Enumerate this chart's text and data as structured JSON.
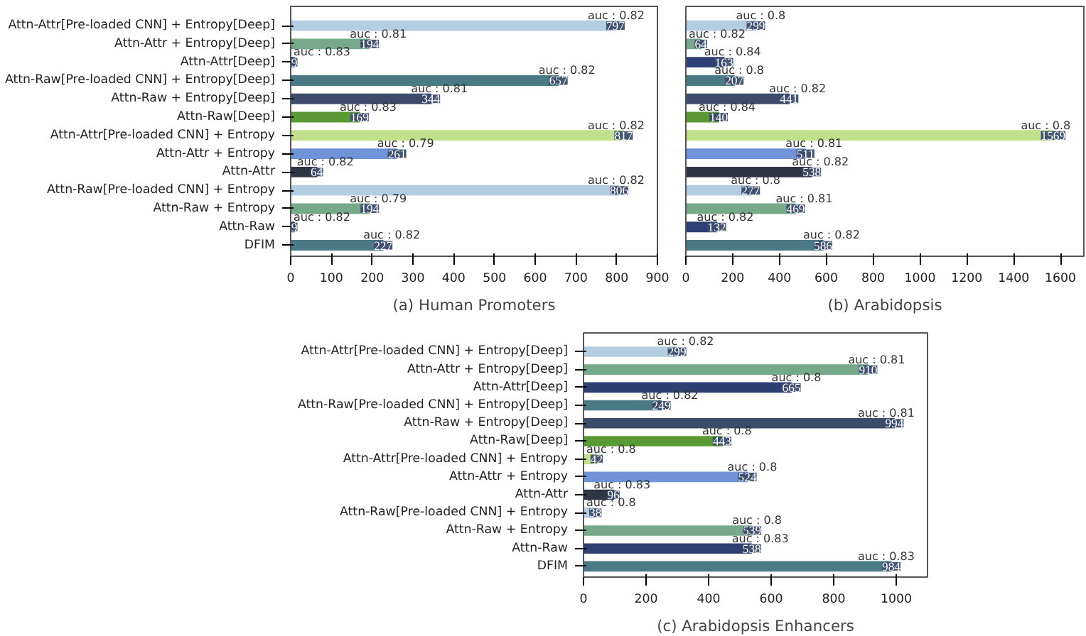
{
  "chart_data": [
    {
      "type": "bar",
      "orientation": "horizontal",
      "title": "(a) Human Promoters",
      "categories": [
        "Attn-Attr[Pre-loaded CNN] + Entropy[Deep]",
        "Attn-Attr + Entropy[Deep]",
        "Attn-Attr[Deep]",
        "Attn-Raw[Pre-loaded CNN] + Entropy[Deep]",
        "Attn-Raw + Entropy[Deep]",
        "Attn-Raw[Deep]",
        "Attn-Attr[Pre-loaded CNN] + Entropy",
        "Attn-Attr + Entropy",
        "Attn-Attr",
        "Attn-Raw[Pre-loaded CNN] + Entropy",
        "Attn-Raw + Entropy",
        "Attn-Raw",
        "DFIM"
      ],
      "values": [
        797,
        194,
        9,
        657,
        344,
        169,
        817,
        261,
        64,
        806,
        194,
        9,
        227
      ],
      "colors": [
        "#b3cde3",
        "#75a98a",
        "#2e3f73",
        "#4a7a85",
        "#3d4b6b",
        "#5a9a35",
        "#c2df8c",
        "#7093d8",
        "#2f3544",
        "#b3cde3",
        "#75a98a",
        "#2e3f73",
        "#4a7a85"
      ],
      "xlim": [
        0,
        900
      ],
      "xticks": [
        0,
        100,
        200,
        300,
        400,
        500,
        600,
        700,
        800,
        900
      ],
      "data_labels": true,
      "grid": false,
      "annotations": [
        {
          "text": "auc : 0.82",
          "x": 797,
          "y": "Attn-Attr[Pre-loaded CNN] + Entropy[Deep]"
        },
        {
          "text": "auc : 0.81",
          "x": 194,
          "y": "Attn-Attr + Entropy[Deep]"
        },
        {
          "text": "auc : 0.83",
          "x": 9,
          "y": "Attn-Attr[Deep]"
        },
        {
          "text": "auc : 0.82",
          "x": 657,
          "y": "Attn-Raw[Pre-loaded CNN] + Entropy[Deep]"
        },
        {
          "text": "auc : 0.81",
          "x": 344,
          "y": "Attn-Raw + Entropy[Deep]"
        },
        {
          "text": "auc : 0.83",
          "x": 169,
          "y": "Attn-Raw[Deep]"
        },
        {
          "text": "auc : 0.82",
          "x": 817,
          "y": "Attn-Attr[Pre-loaded CNN] + Entropy"
        },
        {
          "text": "auc : 0.79",
          "x": 261,
          "y": "Attn-Attr + Entropy"
        },
        {
          "text": "auc : 0.82",
          "x": 64,
          "y": "Attn-Attr"
        },
        {
          "text": "auc : 0.82",
          "x": 806,
          "y": "Attn-Raw[Pre-loaded CNN] + Entropy"
        },
        {
          "text": "auc : 0.79",
          "x": 194,
          "y": "Attn-Raw + Entropy"
        },
        {
          "text": "auc : 0.82",
          "x": 9,
          "y": "Attn-Raw"
        },
        {
          "text": "auc : 0.82",
          "x": 227,
          "y": "DFIM"
        }
      ]
    },
    {
      "type": "bar",
      "orientation": "horizontal",
      "title": "(b) Arabidopsis",
      "categories": [
        "Attn-Attr[Pre-loaded CNN] + Entropy[Deep]",
        "Attn-Attr + Entropy[Deep]",
        "Attn-Attr[Deep]",
        "Attn-Raw[Pre-loaded CNN] + Entropy[Deep]",
        "Attn-Raw + Entropy[Deep]",
        "Attn-Raw[Deep]",
        "Attn-Attr[Pre-loaded CNN] + Entropy",
        "Attn-Attr + Entropy",
        "Attn-Attr",
        "Attn-Raw[Pre-loaded CNN] + Entropy",
        "Attn-Raw + Entropy",
        "Attn-Raw",
        "DFIM"
      ],
      "values": [
        299,
        64,
        163,
        207,
        441,
        140,
        1569,
        511,
        538,
        277,
        469,
        132,
        586
      ],
      "colors": [
        "#b3cde3",
        "#75a98a",
        "#2e3f73",
        "#4a7a85",
        "#3d4b6b",
        "#5a9a35",
        "#c2df8c",
        "#7093d8",
        "#2f3544",
        "#b3cde3",
        "#75a98a",
        "#2e3f73",
        "#4a7a85"
      ],
      "xlim": [
        0,
        1700
      ],
      "xticks": [
        0,
        200,
        400,
        600,
        800,
        1000,
        1200,
        1400,
        1600
      ],
      "data_labels": true,
      "grid": false,
      "tick_labels": "x",
      "annotations": [
        {
          "text": "auc : 0.8",
          "x": 299,
          "y": "Attn-Attr[Pre-loaded CNN] + Entropy[Deep]"
        },
        {
          "text": "auc : 0.82",
          "x": 64,
          "y": "Attn-Attr + Entropy[Deep]"
        },
        {
          "text": "auc : 0.84",
          "x": 163,
          "y": "Attn-Attr[Deep]"
        },
        {
          "text": "auc : 0.8",
          "x": 207,
          "y": "Attn-Raw[Pre-loaded CNN] + Entropy[Deep]"
        },
        {
          "text": "auc : 0.82",
          "x": 441,
          "y": "Attn-Raw + Entropy[Deep]"
        },
        {
          "text": "auc : 0.84",
          "x": 140,
          "y": "Attn-Raw[Deep]"
        },
        {
          "text": "auc : 0.8",
          "x": 1569,
          "y": "Attn-Attr[Pre-loaded CNN] + Entropy"
        },
        {
          "text": "auc : 0.81",
          "x": 511,
          "y": "Attn-Attr + Entropy"
        },
        {
          "text": "auc : 0.82",
          "x": 538,
          "y": "Attn-Attr"
        },
        {
          "text": "auc : 0.8",
          "x": 277,
          "y": "Attn-Raw[Pre-loaded CNN] + Entropy"
        },
        {
          "text": "auc : 0.81",
          "x": 469,
          "y": "Attn-Raw + Entropy"
        },
        {
          "text": "auc : 0.82",
          "x": 132,
          "y": "Attn-Raw"
        },
        {
          "text": "auc : 0.82",
          "x": 586,
          "y": "DFIM"
        }
      ]
    },
    {
      "type": "bar",
      "orientation": "horizontal",
      "title": "(c) Arabidopsis Enhancers",
      "categories": [
        "Attn-Attr[Pre-loaded CNN] + Entropy[Deep]",
        "Attn-Attr + Entropy[Deep]",
        "Attn-Attr[Deep]",
        "Attn-Raw[Pre-loaded CNN] + Entropy[Deep]",
        "Attn-Raw + Entropy[Deep]",
        "Attn-Raw[Deep]",
        "Attn-Attr[Pre-loaded CNN] + Entropy",
        "Attn-Attr + Entropy",
        "Attn-Attr",
        "Attn-Raw[Pre-loaded CNN] + Entropy",
        "Attn-Raw + Entropy",
        "Attn-Raw",
        "DFIM"
      ],
      "values": [
        299,
        910,
        665,
        249,
        994,
        443,
        42,
        524,
        96,
        38,
        539,
        538,
        984
      ],
      "colors": [
        "#b3cde3",
        "#75a98a",
        "#2e3f73",
        "#4a7a85",
        "#3d4b6b",
        "#5a9a35",
        "#c2df8c",
        "#7093d8",
        "#2f3544",
        "#b3cde3",
        "#75a98a",
        "#2e3f73",
        "#4a7a85"
      ],
      "xlim": [
        0,
        1100
      ],
      "xticks": [
        0,
        200,
        400,
        600,
        800,
        1000
      ],
      "data_labels": true,
      "grid": false,
      "annotations": [
        {
          "text": "auc : 0.82",
          "x": 299,
          "y": "Attn-Attr[Pre-loaded CNN] + Entropy[Deep]"
        },
        {
          "text": "auc : 0.81",
          "x": 910,
          "y": "Attn-Attr + Entropy[Deep]"
        },
        {
          "text": "auc : 0.8",
          "x": 665,
          "y": "Attn-Attr[Deep]"
        },
        {
          "text": "auc : 0.82",
          "x": 249,
          "y": "Attn-Raw[Pre-loaded CNN] + Entropy[Deep]"
        },
        {
          "text": "auc : 0.81",
          "x": 994,
          "y": "Attn-Raw + Entropy[Deep]"
        },
        {
          "text": "auc : 0.8",
          "x": 443,
          "y": "Attn-Raw[Deep]"
        },
        {
          "text": "auc : 0.8",
          "x": 42,
          "y": "Attn-Attr[Pre-loaded CNN] + Entropy"
        },
        {
          "text": "auc : 0.8",
          "x": 524,
          "y": "Attn-Attr + Entropy"
        },
        {
          "text": "auc : 0.83",
          "x": 96,
          "y": "Attn-Attr"
        },
        {
          "text": "auc : 0.8",
          "x": 38,
          "y": "Attn-Raw[Pre-loaded CNN] + Entropy"
        },
        {
          "text": "auc : 0.8",
          "x": 539,
          "y": "Attn-Raw + Entropy"
        },
        {
          "text": "auc : 0.83",
          "x": 538,
          "y": "Attn-Raw"
        },
        {
          "text": "auc : 0.83",
          "x": 984,
          "y": "DFIM"
        }
      ]
    }
  ]
}
